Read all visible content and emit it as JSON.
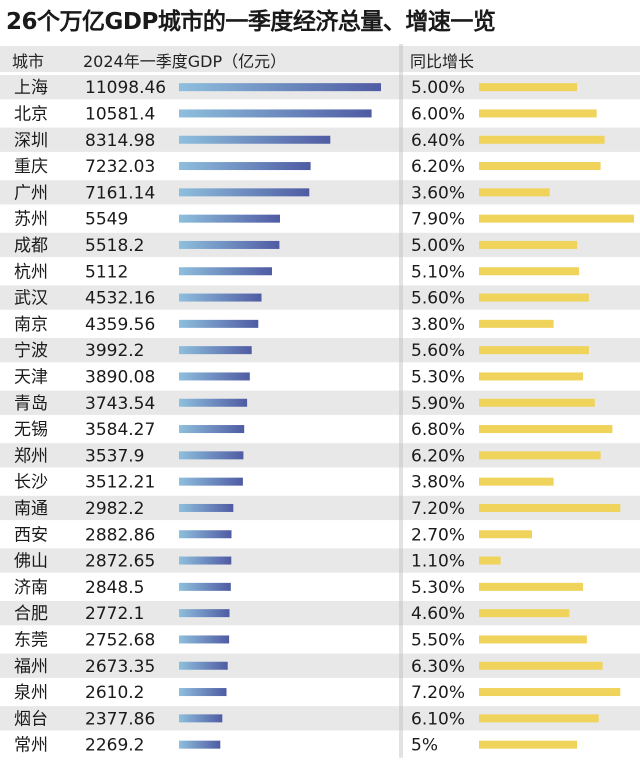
{
  "title": "26个万亿GDP城市的一季度经济总量、增速一览",
  "colors": {
    "stripe": "#e8e8e8",
    "gdp_bar_light": "#8ebfdd",
    "gdp_bar_dark": "#4f5ba3",
    "growth_bar": "#f0d35a"
  },
  "chart_data": {
    "type": "table",
    "headers": {
      "city": "城市",
      "gdp": "2024年一季度GDP（亿元）",
      "growth": "同比增长"
    },
    "gdp_max": 11098.46,
    "growth_max": 7.9,
    "rows": [
      {
        "city": "上海",
        "gdp": 11098.46,
        "gdp_label": "11098.46",
        "growth": 5.0,
        "growth_label": "5.00%"
      },
      {
        "city": "北京",
        "gdp": 10581.4,
        "gdp_label": "10581.4",
        "growth": 6.0,
        "growth_label": "6.00%"
      },
      {
        "city": "深圳",
        "gdp": 8314.98,
        "gdp_label": "8314.98",
        "growth": 6.4,
        "growth_label": "6.40%"
      },
      {
        "city": "重庆",
        "gdp": 7232.03,
        "gdp_label": "7232.03",
        "growth": 6.2,
        "growth_label": "6.20%"
      },
      {
        "city": "广州",
        "gdp": 7161.14,
        "gdp_label": "7161.14",
        "growth": 3.6,
        "growth_label": "3.60%"
      },
      {
        "city": "苏州",
        "gdp": 5549,
        "gdp_label": "5549",
        "growth": 7.9,
        "growth_label": "7.90%"
      },
      {
        "city": "成都",
        "gdp": 5518.2,
        "gdp_label": "5518.2",
        "growth": 5.0,
        "growth_label": "5.00%"
      },
      {
        "city": "杭州",
        "gdp": 5112,
        "gdp_label": "5112",
        "growth": 5.1,
        "growth_label": "5.10%"
      },
      {
        "city": "武汉",
        "gdp": 4532.16,
        "gdp_label": "4532.16",
        "growth": 5.6,
        "growth_label": "5.60%"
      },
      {
        "city": "南京",
        "gdp": 4359.56,
        "gdp_label": "4359.56",
        "growth": 3.8,
        "growth_label": "3.80%"
      },
      {
        "city": "宁波",
        "gdp": 3992.2,
        "gdp_label": "3992.2",
        "growth": 5.6,
        "growth_label": "5.60%"
      },
      {
        "city": "天津",
        "gdp": 3890.08,
        "gdp_label": "3890.08",
        "growth": 5.3,
        "growth_label": "5.30%"
      },
      {
        "city": "青岛",
        "gdp": 3743.54,
        "gdp_label": "3743.54",
        "growth": 5.9,
        "growth_label": "5.90%"
      },
      {
        "city": "无锡",
        "gdp": 3584.27,
        "gdp_label": "3584.27",
        "growth": 6.8,
        "growth_label": "6.80%"
      },
      {
        "city": "郑州",
        "gdp": 3537.9,
        "gdp_label": "3537.9",
        "growth": 6.2,
        "growth_label": "6.20%"
      },
      {
        "city": "长沙",
        "gdp": 3512.21,
        "gdp_label": "3512.21",
        "growth": 3.8,
        "growth_label": "3.80%"
      },
      {
        "city": "南通",
        "gdp": 2982.2,
        "gdp_label": "2982.2",
        "growth": 7.2,
        "growth_label": "7.20%"
      },
      {
        "city": "西安",
        "gdp": 2882.86,
        "gdp_label": "2882.86",
        "growth": 2.7,
        "growth_label": "2.70%"
      },
      {
        "city": "佛山",
        "gdp": 2872.65,
        "gdp_label": "2872.65",
        "growth": 1.1,
        "growth_label": "1.10%"
      },
      {
        "city": "济南",
        "gdp": 2848.5,
        "gdp_label": "2848.5",
        "growth": 5.3,
        "growth_label": "5.30%"
      },
      {
        "city": "合肥",
        "gdp": 2772.1,
        "gdp_label": "2772.1",
        "growth": 4.6,
        "growth_label": "4.60%"
      },
      {
        "city": "东莞",
        "gdp": 2752.68,
        "gdp_label": "2752.68",
        "growth": 5.5,
        "growth_label": "5.50%"
      },
      {
        "city": "福州",
        "gdp": 2673.35,
        "gdp_label": "2673.35",
        "growth": 6.3,
        "growth_label": "6.30%"
      },
      {
        "city": "泉州",
        "gdp": 2610.2,
        "gdp_label": "2610.2",
        "growth": 7.2,
        "growth_label": "7.20%"
      },
      {
        "city": "烟台",
        "gdp": 2377.86,
        "gdp_label": "2377.86",
        "growth": 6.1,
        "growth_label": "6.10%"
      },
      {
        "city": "常州",
        "gdp": 2269.2,
        "gdp_label": "2269.2",
        "growth": 5.0,
        "growth_label": "5%"
      }
    ]
  }
}
